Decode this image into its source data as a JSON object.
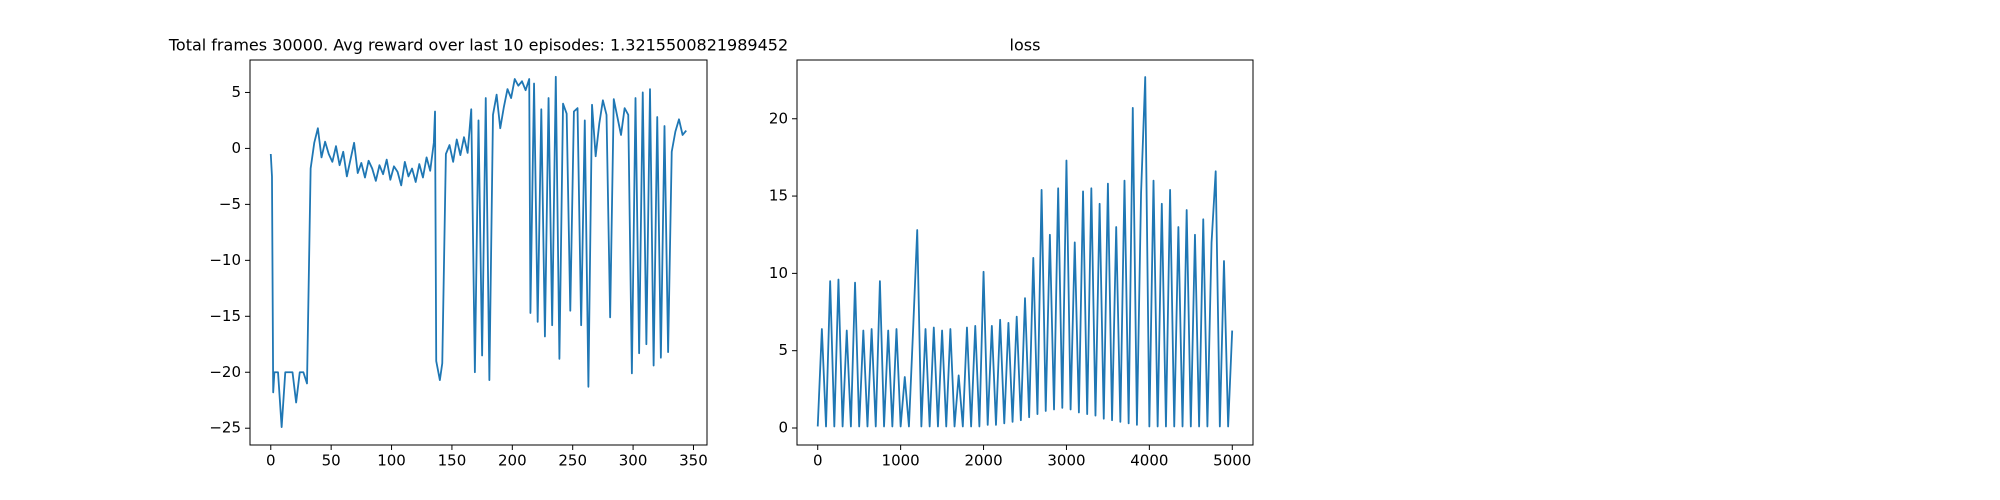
{
  "chart_data": [
    {
      "type": "line",
      "title": "Total frames 30000. Avg reward over last 10 episodes: 1.3215500821989452",
      "color": "#1f77b4",
      "xlim": [
        -17.2,
        361.2
      ],
      "ylim": [
        -26.5,
        7.9
      ],
      "xticks": [
        0,
        50,
        100,
        150,
        200,
        250,
        300,
        350
      ],
      "yticks": [
        {
          "value": -25,
          "label": "−25"
        },
        {
          "value": -20,
          "label": "−20"
        },
        {
          "value": -15,
          "label": "−15"
        },
        {
          "value": -10,
          "label": "−10"
        },
        {
          "value": -5,
          "label": "−5"
        },
        0,
        5
      ],
      "x": [
        0,
        1,
        2,
        3,
        6,
        9,
        12,
        15,
        18,
        21,
        24,
        27,
        30,
        33,
        36,
        39,
        42,
        45,
        48,
        51,
        54,
        57,
        60,
        63,
        66,
        69,
        72,
        75,
        78,
        81,
        84,
        87,
        90,
        93,
        96,
        99,
        102,
        105,
        108,
        111,
        114,
        117,
        120,
        123,
        126,
        129,
        132,
        135,
        136,
        137,
        140,
        142,
        145,
        148,
        151,
        154,
        157,
        160,
        163,
        166,
        169,
        172,
        175,
        178,
        181,
        184,
        187,
        190,
        193,
        196,
        199,
        202,
        205,
        208,
        211,
        214,
        215,
        218,
        221,
        224,
        227,
        230,
        233,
        236,
        239,
        242,
        245,
        248,
        251,
        254,
        257,
        260,
        263,
        266,
        269,
        272,
        275,
        278,
        281,
        284,
        287,
        290,
        293,
        296,
        299,
        302,
        305,
        308,
        311,
        314,
        317,
        320,
        323,
        326,
        329,
        332,
        335,
        338,
        341,
        344
      ],
      "values": [
        -0.5,
        -2.5,
        -21.8,
        -20,
        -20,
        -24.9,
        -20,
        -20,
        -20,
        -22.7,
        -20,
        -20,
        -21,
        -1.8,
        0.5,
        1.8,
        -0.8,
        0.6,
        -0.5,
        -1.2,
        0.2,
        -1.5,
        -0.3,
        -2.5,
        -1.0,
        0.5,
        -2.2,
        -1.3,
        -2.6,
        -1.1,
        -1.8,
        -2.9,
        -1.5,
        -2.3,
        -1.0,
        -2.8,
        -1.6,
        -2.1,
        -3.3,
        -1.2,
        -2.5,
        -1.8,
        -3.0,
        -1.4,
        -2.6,
        -0.8,
        -2.0,
        0.5,
        3.3,
        -19,
        -20.7,
        -19.2,
        -0.5,
        0.3,
        -1.2,
        0.8,
        -0.6,
        1.0,
        -0.4,
        3.5,
        -20,
        2.5,
        -18.5,
        4.5,
        -20.7,
        3.0,
        4.8,
        1.8,
        3.7,
        5.3,
        4.5,
        6.2,
        5.6,
        6.0,
        5.2,
        6.2,
        -14.7,
        5.8,
        -15.5,
        3.5,
        -16.8,
        4.5,
        -15.8,
        6.4,
        -18.8,
        4.0,
        3.1,
        -14.5,
        3.3,
        3.6,
        -15.8,
        2.5,
        -21.3,
        3.9,
        -0.7,
        2.2,
        4.3,
        3.0,
        -15.1,
        4.4,
        2.8,
        1.2,
        3.6,
        3.0,
        -20.1,
        4.5,
        -18.3,
        5.0,
        -17.5,
        5.3,
        -19.4,
        2.8,
        -18.7,
        2.0,
        -18.2,
        -0.3,
        1.5,
        2.6,
        1.2,
        1.6
      ]
    },
    {
      "type": "line",
      "title": "loss",
      "color": "#1f77b4",
      "xlim": [
        -250,
        5250
      ],
      "ylim": [
        -1.1,
        23.8
      ],
      "xticks": [
        0,
        1000,
        2000,
        3000,
        4000,
        5000
      ],
      "yticks": [
        0,
        5,
        10,
        15,
        20
      ],
      "x": [
        0,
        50,
        100,
        150,
        200,
        250,
        300,
        350,
        400,
        450,
        500,
        550,
        600,
        650,
        700,
        750,
        800,
        850,
        900,
        950,
        1000,
        1050,
        1100,
        1150,
        1200,
        1250,
        1300,
        1350,
        1400,
        1450,
        1500,
        1550,
        1600,
        1650,
        1700,
        1750,
        1800,
        1850,
        1900,
        1950,
        2000,
        2050,
        2100,
        2150,
        2200,
        2250,
        2300,
        2350,
        2400,
        2450,
        2500,
        2550,
        2600,
        2650,
        2700,
        2750,
        2800,
        2850,
        2900,
        2950,
        3000,
        3050,
        3100,
        3150,
        3200,
        3250,
        3300,
        3350,
        3400,
        3450,
        3500,
        3550,
        3600,
        3650,
        3700,
        3750,
        3800,
        3850,
        3900,
        3950,
        4000,
        4050,
        4100,
        4150,
        4200,
        4250,
        4300,
        4350,
        4400,
        4450,
        4500,
        4550,
        4600,
        4650,
        4700,
        4750,
        4800,
        4850,
        4900,
        4950,
        4999
      ],
      "values": [
        0.1,
        6.4,
        0.1,
        9.5,
        0.1,
        9.6,
        0.1,
        6.3,
        0.1,
        9.4,
        0.1,
        6.3,
        0.1,
        6.4,
        0.1,
        9.5,
        0.1,
        6.3,
        0.1,
        6.4,
        0.1,
        3.3,
        0.1,
        6.3,
        12.8,
        0.1,
        6.4,
        0.1,
        6.5,
        0.1,
        6.3,
        0.1,
        6.4,
        0.1,
        3.4,
        0.1,
        6.5,
        0.1,
        6.6,
        0.1,
        10.1,
        0.2,
        6.6,
        0.2,
        7.0,
        0.3,
        6.8,
        0.4,
        7.2,
        0.5,
        8.4,
        0.7,
        11.0,
        0.9,
        15.4,
        1.1,
        12.5,
        1.2,
        15.5,
        1.3,
        17.3,
        1.2,
        12.0,
        1.0,
        15.3,
        0.9,
        15.5,
        0.8,
        14.5,
        0.6,
        15.8,
        0.5,
        13.0,
        0.4,
        16.0,
        0.3,
        20.7,
        0.2,
        15.2,
        22.7,
        0.1,
        16.0,
        0.1,
        14.5,
        0.1,
        15.4,
        0.1,
        13.0,
        0.1,
        14.1,
        0.1,
        12.5,
        0.1,
        13.5,
        0.1,
        12.0,
        16.6,
        0.1,
        10.8,
        0.1,
        6.3
      ]
    }
  ]
}
